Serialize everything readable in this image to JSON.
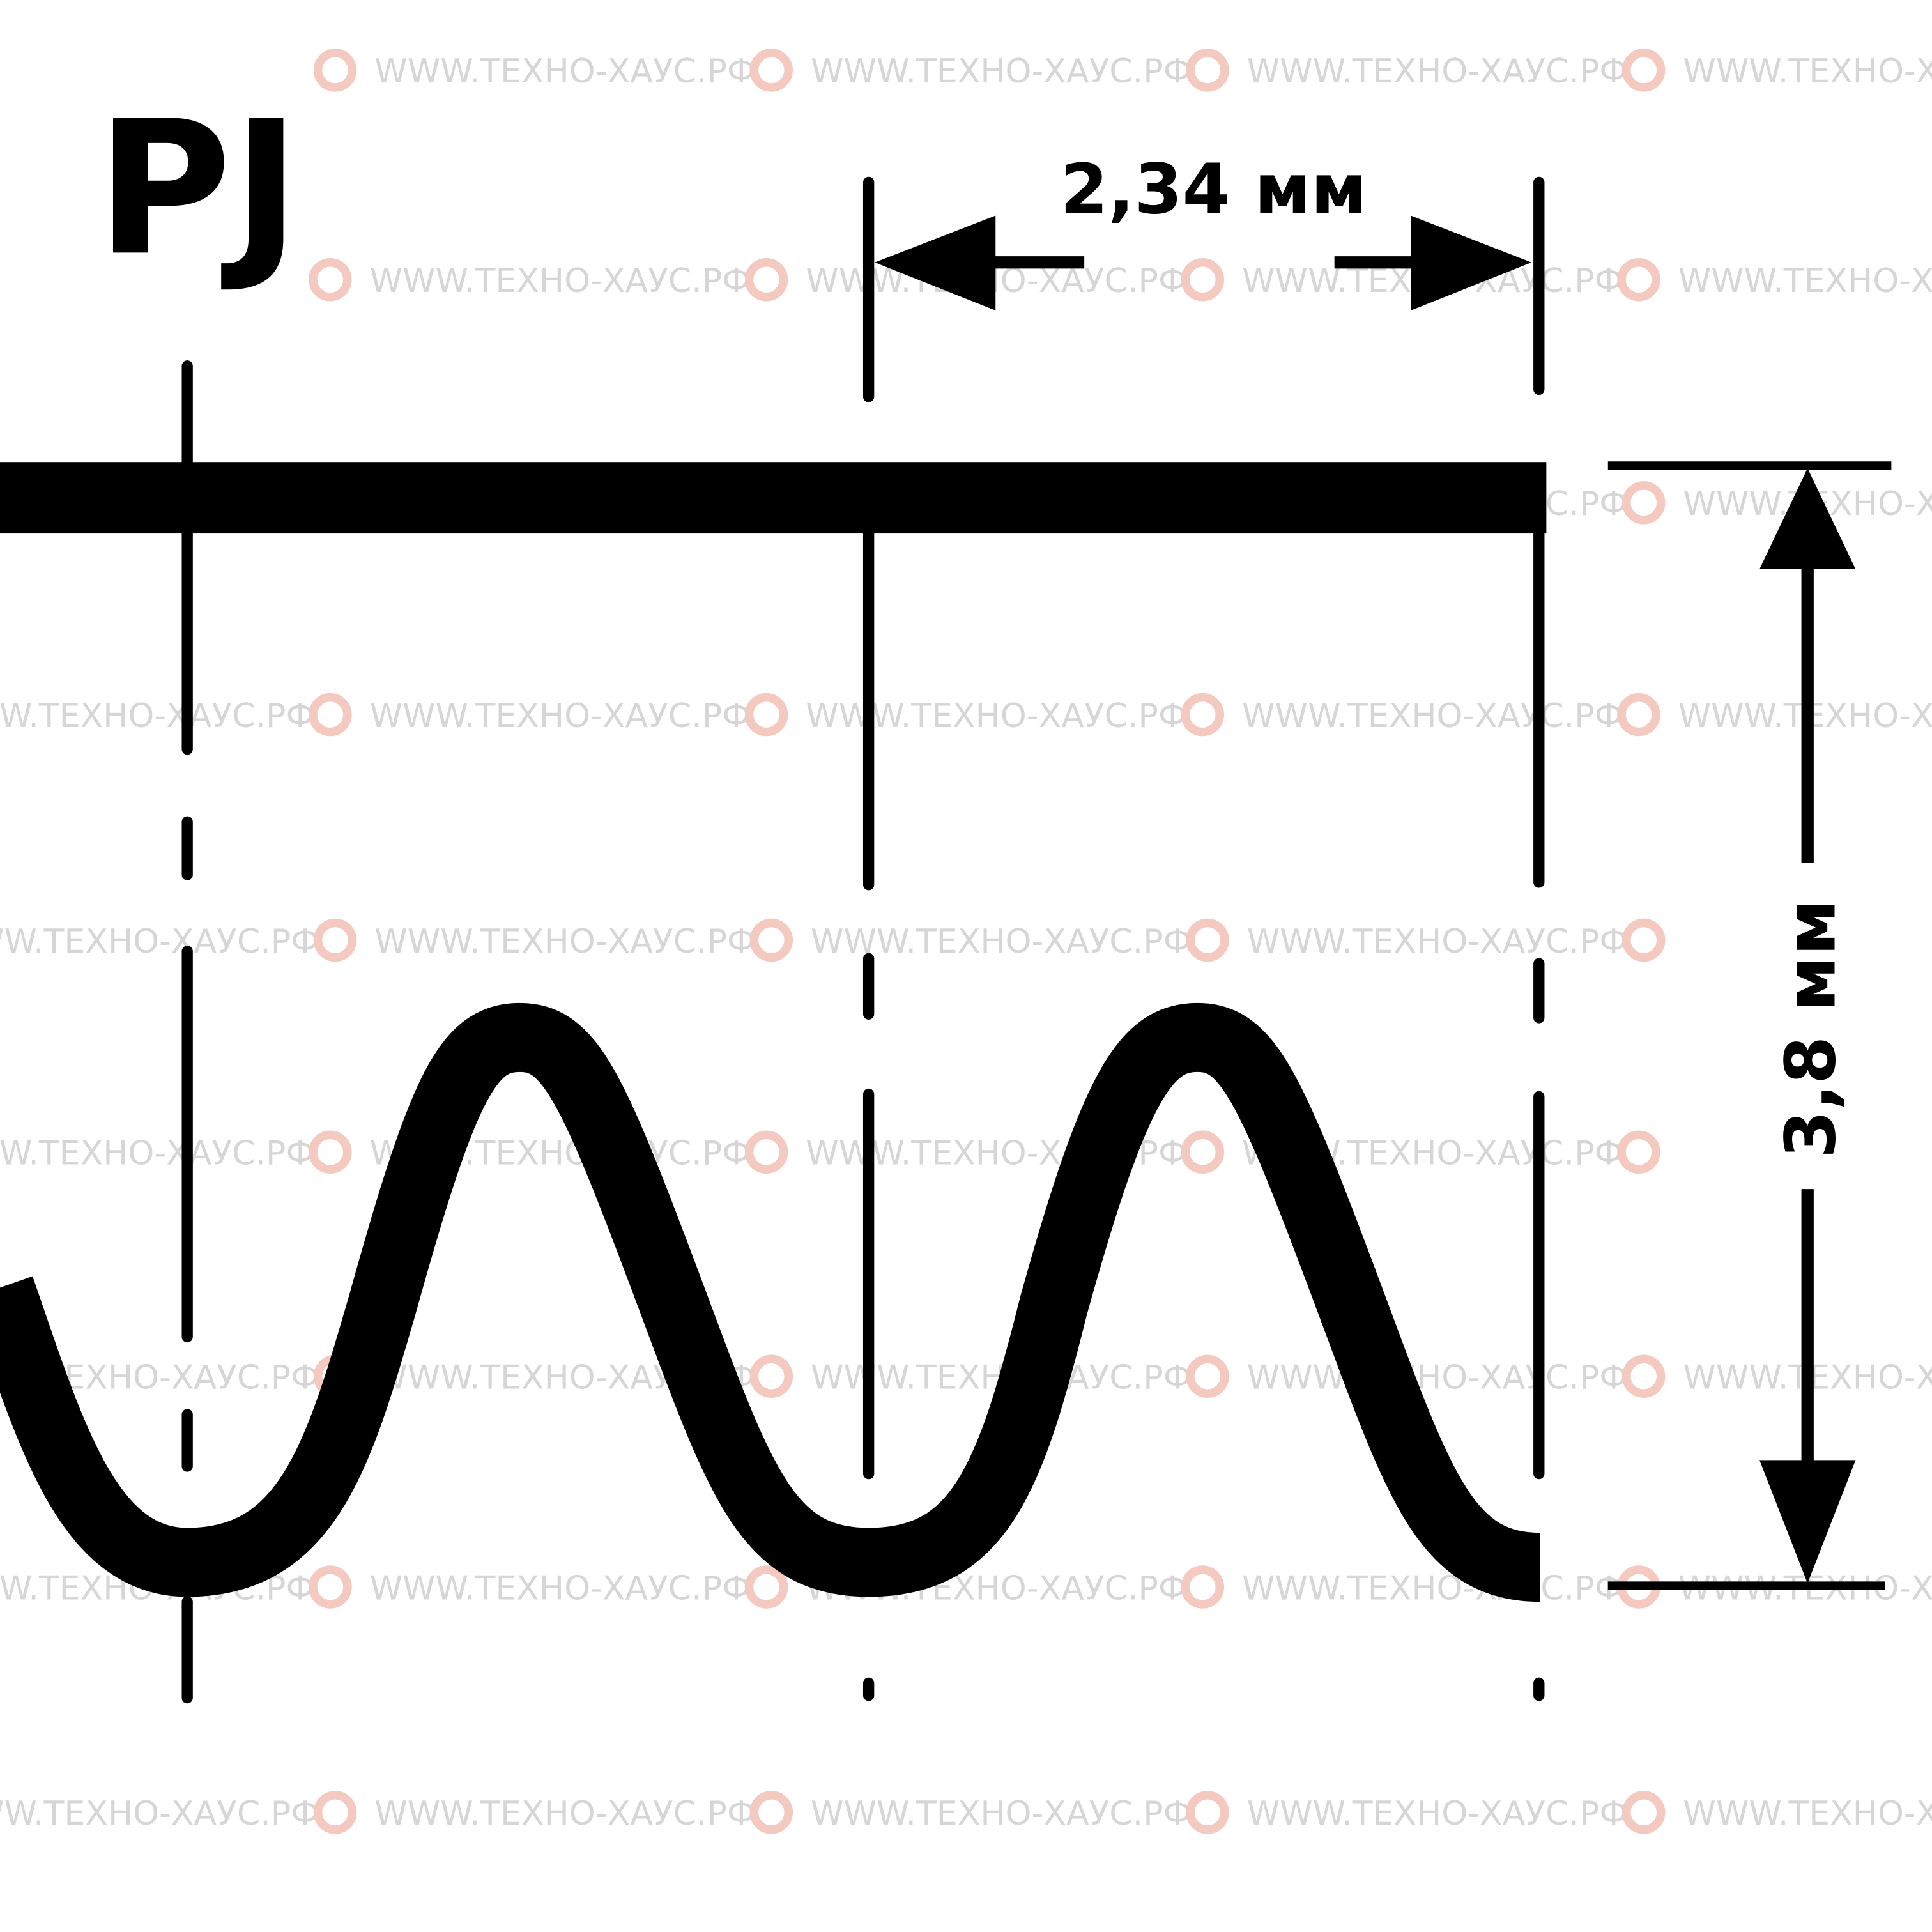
{
  "profile_label": "PJ",
  "pitch_dimension": "2,34 мм",
  "height_dimension": "3,8 мм",
  "watermark": {
    "text": "WWW.ТЕХНО-ХАУС.РФ",
    "text_color": "#d6d6d6",
    "logo_color": "#f4c9c0",
    "logo_icon": "gear-dragon-logo-icon"
  },
  "colors": {
    "line": "#000000",
    "background": "#ffffff"
  }
}
